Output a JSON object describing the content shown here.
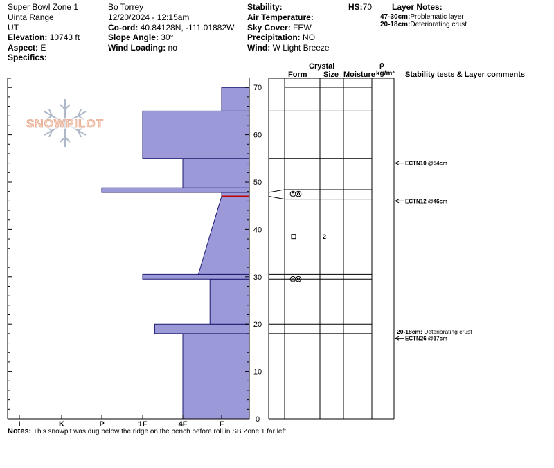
{
  "header": {
    "location": "Super Bowl Zone 1",
    "range": "Uinta Range",
    "state": "UT",
    "elevation_label": "Elevation:",
    "elevation": "10743 ft",
    "aspect_label": "Aspect:",
    "aspect": "E",
    "specifics_label": "Specifics:",
    "observer": "Bo Torrey",
    "datetime": "12/20/2024 - 12:15am",
    "coord_label": "Co-ord:",
    "coord": "40.84128N, -111.01882W",
    "slope_label": "Slope Angle:",
    "slope": "30°",
    "wind_loading_label": "Wind Loading:",
    "wind_loading": "no",
    "stability_label": "Stability:",
    "air_temp_label": "Air Temperature:",
    "sky_label": "Sky Cover:",
    "sky": "FEW",
    "precip_label": "Precipitation:",
    "precip": "NO",
    "wind_label": "Wind:",
    "wind": "W Light Breeze",
    "hs_label": "HS:",
    "hs": "70",
    "layer_notes_label": "Layer Notes:",
    "layer_notes": [
      {
        "range": "47-30cm:",
        "text": "Problematic layer"
      },
      {
        "range": "20-18cm:",
        "text": "Deteriorating crust"
      }
    ]
  },
  "columns": {
    "crystal": "Crystal",
    "form": "Form",
    "size": "Size",
    "moisture": "Moisture",
    "rho": "ρ",
    "density_unit": "kg/m³",
    "stability": "Stability tests & Layer comments"
  },
  "logo_text": "SNOWPILOT",
  "notes_label": "Notes:",
  "notes": "This snowpit was dug below the ridge on the bench before roll in SB Zone 1 far left.",
  "chart_data": {
    "type": "snow-profile",
    "hardness_scale": [
      "I",
      "K",
      "P",
      "1F",
      "4F",
      "F"
    ],
    "y_ticks": [
      0,
      10,
      20,
      30,
      40,
      50,
      60,
      70
    ],
    "ylim": [
      0,
      70
    ],
    "layers": [
      {
        "bottom": 0,
        "top": 18,
        "h_bottom": 4.0,
        "h_top": 4.0
      },
      {
        "bottom": 18,
        "top": 20,
        "h_bottom": 3.3,
        "h_top": 3.3
      },
      {
        "bottom": 20,
        "top": 29.5,
        "h_bottom": 4.7,
        "h_top": 4.7
      },
      {
        "bottom": 29.5,
        "top": 30.5,
        "h_bottom": 3.0,
        "h_top": 3.0
      },
      {
        "bottom": 30.5,
        "top": 47,
        "h_bottom": 4.4,
        "h_top": 5.0
      },
      {
        "bottom": 47,
        "top": 47.8,
        "h_bottom": 5.0,
        "h_top": 5.0
      },
      {
        "bottom": 47.8,
        "top": 48.8,
        "h_bottom": 2.0,
        "h_top": 2.0
      },
      {
        "bottom": 48.8,
        "top": 55,
        "h_bottom": 4.0,
        "h_top": 4.0
      },
      {
        "bottom": 55,
        "top": 65,
        "h_bottom": 3.0,
        "h_top": 3.0
      },
      {
        "bottom": 65,
        "top": 70,
        "h_bottom": 5.0,
        "h_top": 5.0
      }
    ],
    "red_marker": {
      "depth": 47,
      "h_from": 5.0,
      "h_to": 6.0
    },
    "strat_lines": [
      18,
      20,
      29.5,
      30.5,
      46.4,
      48.4,
      55,
      65
    ],
    "grain_markers": [
      {
        "depth": 47.5,
        "form": "rounded",
        "size": ""
      },
      {
        "depth": 38.5,
        "form": "faceted",
        "size": "2"
      },
      {
        "depth": 29.5,
        "form": "rounded",
        "size": ""
      }
    ],
    "stability_tests": [
      {
        "depth": 54,
        "label": "ECTN10 @54cm"
      },
      {
        "depth": 46,
        "label": "ECTN12 @46cm"
      },
      {
        "depth": 17,
        "label": "ECTN26 @17cm"
      }
    ],
    "layer_comments": [
      {
        "depth": 18,
        "range": "20-18cm:",
        "text": "Deteriorating crust"
      }
    ]
  }
}
